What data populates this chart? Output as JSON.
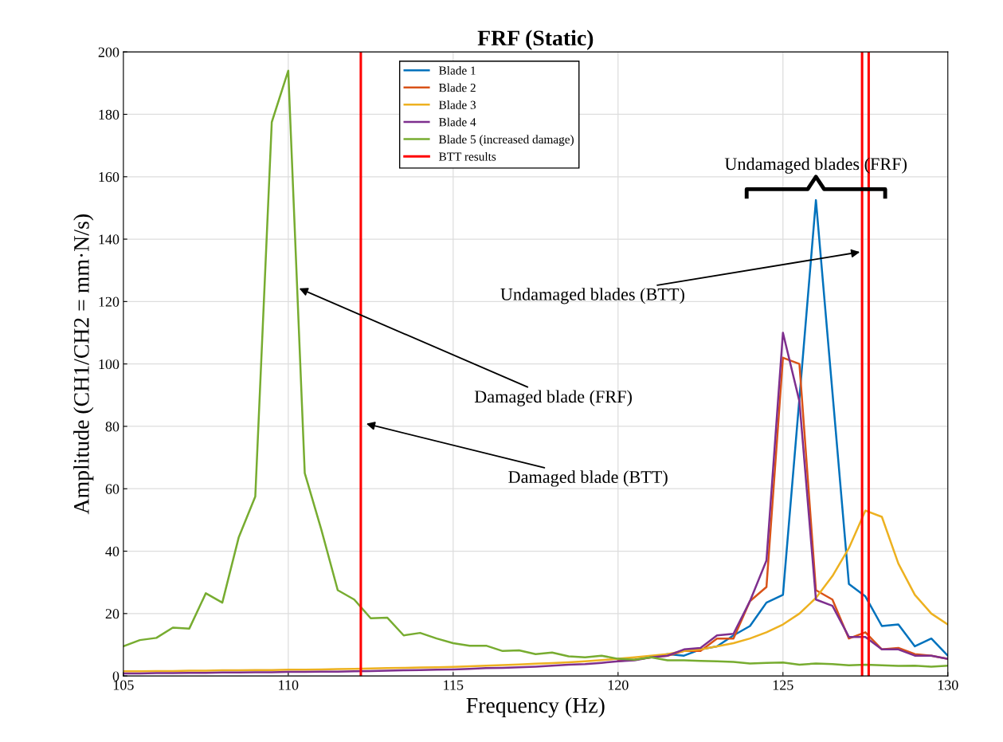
{
  "chart_data": {
    "type": "line",
    "title": "FRF (Static)",
    "xlabel": "Frequency (Hz)",
    "ylabel": "Amplitude (CH1/CH2 = mm·N/s)",
    "x": [
      105,
      105.5,
      106,
      106.5,
      107,
      107.5,
      108,
      108.5,
      109,
      109.5,
      110,
      110.5,
      111,
      111.5,
      112,
      112.5,
      113,
      113.5,
      114,
      114.5,
      115,
      115.5,
      116,
      116.5,
      117,
      117.5,
      118,
      118.5,
      119,
      119.5,
      120,
      120.5,
      121,
      121.5,
      122,
      122.5,
      123,
      123.5,
      124,
      124.5,
      125,
      125.5,
      126,
      126.5,
      127,
      127.5,
      128,
      128.5,
      129,
      129.5,
      130
    ],
    "series": [
      {
        "name": "Blade 1",
        "color": "#0072bd",
        "values": [
          null,
          null,
          null,
          null,
          null,
          null,
          null,
          null,
          null,
          null,
          null,
          null,
          null,
          null,
          null,
          null,
          null,
          null,
          null,
          null,
          null,
          null,
          null,
          null,
          null,
          null,
          null,
          null,
          null,
          null,
          null,
          null,
          6,
          7,
          6.5,
          8.5,
          9.5,
          13,
          16,
          23.5,
          26,
          89,
          152.5,
          91,
          29.5,
          25.5,
          16,
          16.5,
          9.5,
          12,
          6.5
        ]
      },
      {
        "name": "Blade 2",
        "color": "#d95319",
        "values": [
          null,
          null,
          null,
          null,
          null,
          null,
          null,
          null,
          null,
          null,
          null,
          null,
          null,
          null,
          null,
          null,
          null,
          null,
          null,
          null,
          null,
          null,
          null,
          null,
          null,
          null,
          null,
          null,
          null,
          null,
          4.8,
          5.2,
          6,
          6.5,
          8,
          8,
          12,
          12,
          24,
          28.5,
          102,
          100,
          27.5,
          24.5,
          12,
          14,
          8.5,
          9,
          7,
          6.5,
          5.5
        ]
      },
      {
        "name": "Blade 3",
        "color": "#edb120",
        "values": [
          1.5,
          1.5,
          1.6,
          1.6,
          1.7,
          1.7,
          1.8,
          1.8,
          1.9,
          1.9,
          2.0,
          2.0,
          2.1,
          2.2,
          2.3,
          2.4,
          2.5,
          2.6,
          2.7,
          2.8,
          2.9,
          3.1,
          3.3,
          3.5,
          3.7,
          3.9,
          4.1,
          4.4,
          4.7,
          5.1,
          5.5,
          6,
          6.5,
          7,
          8,
          8.5,
          9.5,
          10.5,
          12,
          14,
          16.5,
          20,
          25,
          32,
          41,
          53,
          51,
          36,
          26,
          20,
          16.5
        ]
      },
      {
        "name": "Blade 4",
        "color": "#7e2f8e",
        "values": [
          0.8,
          0.8,
          0.9,
          0.9,
          1.0,
          1.0,
          1.1,
          1.1,
          1.2,
          1.2,
          1.3,
          1.3,
          1.4,
          1.4,
          1.5,
          1.6,
          1.7,
          1.8,
          1.9,
          2.0,
          2.1,
          2.3,
          2.5,
          2.6,
          2.8,
          3.0,
          3.3,
          3.6,
          3.8,
          4.2,
          4.7,
          5,
          6,
          6.5,
          8.5,
          9,
          13,
          13.5,
          24,
          37,
          110,
          88,
          24.5,
          22.5,
          12.5,
          12.5,
          8.5,
          8.5,
          6.5,
          6.5,
          5.5
        ]
      },
      {
        "name": "Blade 5 (increased damage)",
        "color": "#77ac30",
        "values": [
          9.5,
          11.5,
          12.2,
          15.5,
          15.2,
          26.5,
          23.5,
          44.5,
          57.5,
          177.5,
          194,
          65,
          47,
          27.5,
          24.5,
          18.5,
          18.7,
          13,
          13.8,
          12,
          10.5,
          9.7,
          9.7,
          8,
          8.2,
          7,
          7.5,
          6.3,
          6,
          6.5,
          5.5,
          5.2,
          6,
          5,
          5,
          4.8,
          4.7,
          4.5,
          4,
          4.2,
          4.3,
          3.6,
          4,
          3.8,
          3.4,
          3.6,
          3.4,
          3.2,
          3.3,
          3,
          3.3
        ]
      },
      {
        "name": "BTT results",
        "color": "#ff0000",
        "x": [
          112.2,
          112.2,
          null,
          127.4,
          127.4,
          null,
          127.6,
          127.6
        ],
        "values": [
          0,
          200,
          null,
          0,
          200,
          null,
          0,
          200
        ]
      }
    ],
    "annotations": [
      "Undamaged blades (FRF)",
      {
        "text": "Undamaged blades (BTT)",
        "x": 127.4,
        "y": 136
      },
      {
        "text": "Damaged blade (FRF)",
        "x": 110.27,
        "y": 124.5
      },
      {
        "text": "Damaged blade (BTT)",
        "x": 112.3,
        "y": 81
      }
    ],
    "xlim": [
      105,
      130
    ],
    "ylim": [
      0,
      200
    ],
    "xticks": [
      105,
      110,
      115,
      120,
      125,
      130
    ],
    "yticks": [
      0,
      20,
      40,
      60,
      80,
      100,
      120,
      140,
      160,
      180,
      200
    ],
    "grid": true,
    "legend": "top",
    "line_style": "solid",
    "marker": "none"
  }
}
